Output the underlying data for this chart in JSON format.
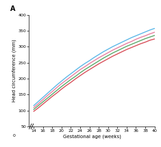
{
  "title": "A",
  "xlabel": "Gestational age (weeks)",
  "ylabel": "Head circumference (mm)",
  "xlim": [
    13,
    40
  ],
  "ylim": [
    50,
    400
  ],
  "xticks": [
    14,
    16,
    18,
    20,
    22,
    24,
    26,
    28,
    30,
    32,
    34,
    36,
    38,
    40
  ],
  "yticks": [
    50,
    100,
    150,
    200,
    250,
    300,
    350,
    400
  ],
  "weeks": [
    14,
    15,
    16,
    17,
    18,
    19,
    20,
    21,
    22,
    23,
    24,
    25,
    26,
    27,
    28,
    29,
    30,
    31,
    32,
    33,
    34,
    35,
    36,
    37,
    38,
    39,
    40
  ],
  "curves": {
    "blue_top": [
      115,
      128,
      141,
      154,
      167,
      180,
      192,
      204,
      215,
      226,
      237,
      247,
      256,
      266,
      275,
      284,
      292,
      300,
      307,
      314,
      321,
      328,
      334,
      340,
      346,
      352,
      357
    ],
    "pink_upper": [
      109,
      121,
      134,
      147,
      159,
      172,
      184,
      195,
      206,
      217,
      228,
      237,
      247,
      256,
      265,
      273,
      281,
      289,
      296,
      303,
      310,
      316,
      323,
      329,
      334,
      340,
      345
    ],
    "green_mid": [
      103,
      115,
      127,
      139,
      151,
      163,
      175,
      186,
      197,
      207,
      218,
      228,
      237,
      246,
      255,
      264,
      272,
      280,
      287,
      294,
      301,
      307,
      313,
      319,
      325,
      330,
      335
    ],
    "red_lower": [
      97,
      108,
      120,
      132,
      144,
      155,
      167,
      178,
      188,
      199,
      209,
      219,
      228,
      237,
      246,
      254,
      262,
      270,
      277,
      284,
      291,
      297,
      303,
      309,
      314,
      320,
      324
    ]
  },
  "colors": {
    "blue_top": "#5bb8e8",
    "pink_upper": "#e87fa0",
    "green_mid": "#5aaa6a",
    "red_lower": "#d94f5a"
  },
  "background": "#ffffff",
  "linewidth": 1.0,
  "label_fontsize": 5.0,
  "tick_fontsize": 4.5,
  "title_fontsize": 7
}
